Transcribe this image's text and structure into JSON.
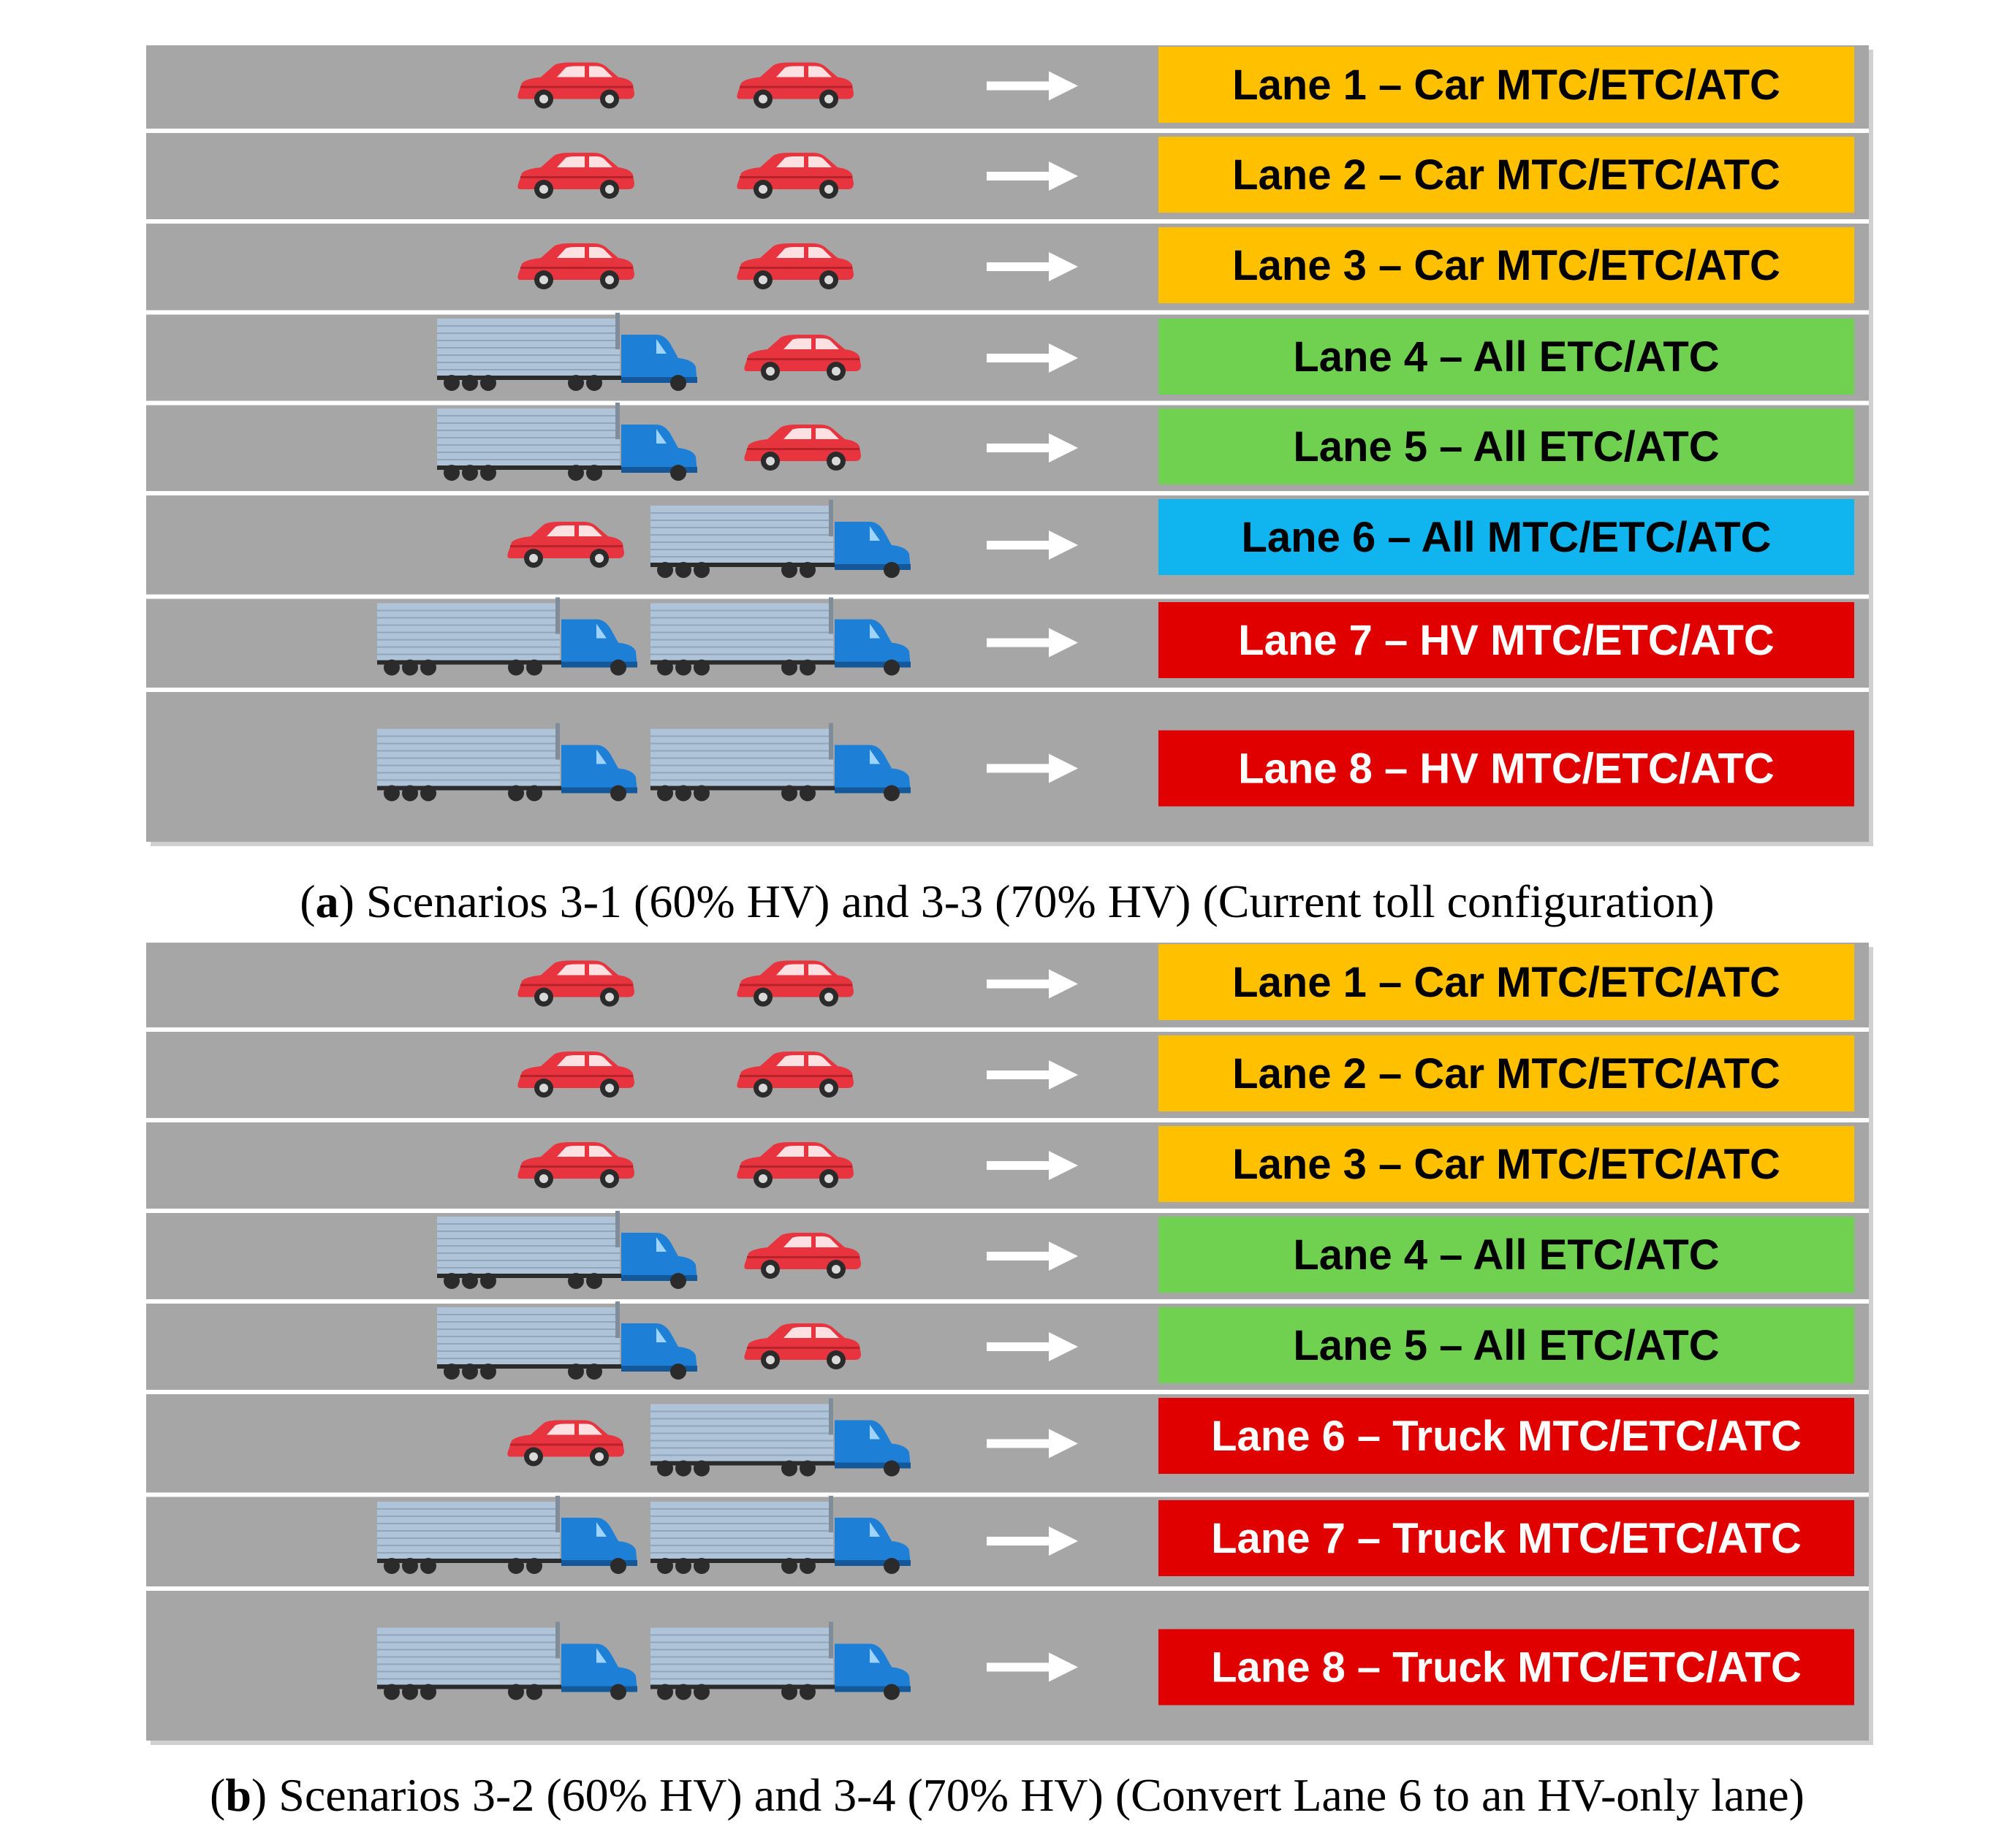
{
  "panels": [
    {
      "id": "a",
      "caption_letter": "a",
      "caption_text": " Scenarios 3-1 (60% HV) and 3-3 (70% HV) (Current toll configuration)",
      "lanes": [
        {
          "label": "Lane 1 – Car MTC/ETC/ATC",
          "type": "car",
          "color": "#FFC000",
          "text_color": "#000000",
          "vehicles": [
            "car",
            "car"
          ]
        },
        {
          "label": "Lane 2 – Car MTC/ETC/ATC",
          "type": "car",
          "color": "#FFC000",
          "text_color": "#000000",
          "vehicles": [
            "car",
            "car"
          ]
        },
        {
          "label": "Lane 3 – Car MTC/ETC/ATC",
          "type": "car",
          "color": "#FFC000",
          "text_color": "#000000",
          "vehicles": [
            "car",
            "car"
          ]
        },
        {
          "label": "Lane 4 – All ETC/ATC",
          "type": "all",
          "color": "#70D050",
          "text_color": "#000000",
          "vehicles": [
            "truck",
            "car"
          ]
        },
        {
          "label": "Lane 5 – All ETC/ATC",
          "type": "all",
          "color": "#70D050",
          "text_color": "#000000",
          "vehicles": [
            "truck",
            "car"
          ]
        },
        {
          "label": "Lane 6 – All MTC/ETC/ATC",
          "type": "all",
          "color": "#10B4EE",
          "text_color": "#000000",
          "vehicles": [
            "car",
            "truck"
          ]
        },
        {
          "label": "Lane 7 – HV MTC/ETC/ATC",
          "type": "hv",
          "color": "#E00000",
          "text_color": "#FFFFFF",
          "vehicles": [
            "truck",
            "truck"
          ]
        },
        {
          "label": "Lane 8 – HV MTC/ETC/ATC",
          "type": "hv",
          "color": "#E00000",
          "text_color": "#FFFFFF",
          "vehicles": [
            "truck",
            "truck"
          ]
        }
      ]
    },
    {
      "id": "b",
      "caption_letter": "b",
      "caption_text": " Scenarios 3-2 (60% HV) and 3-4 (70% HV) (Convert Lane 6 to an HV-only lane)",
      "lanes": [
        {
          "label": "Lane 1 – Car MTC/ETC/ATC",
          "type": "car",
          "color": "#FFC000",
          "text_color": "#000000",
          "vehicles": [
            "car",
            "car"
          ]
        },
        {
          "label": "Lane 2 – Car MTC/ETC/ATC",
          "type": "car",
          "color": "#FFC000",
          "text_color": "#000000",
          "vehicles": [
            "car",
            "car"
          ]
        },
        {
          "label": "Lane 3 – Car MTC/ETC/ATC",
          "type": "car",
          "color": "#FFC000",
          "text_color": "#000000",
          "vehicles": [
            "car",
            "car"
          ]
        },
        {
          "label": "Lane 4 – All ETC/ATC",
          "type": "all",
          "color": "#70D050",
          "text_color": "#000000",
          "vehicles": [
            "truck",
            "car"
          ]
        },
        {
          "label": "Lane 5 – All ETC/ATC",
          "type": "all",
          "color": "#70D050",
          "text_color": "#000000",
          "vehicles": [
            "truck",
            "car"
          ]
        },
        {
          "label": "Lane 6 – Truck MTC/ETC/ATC",
          "type": "hv",
          "color": "#E00000",
          "text_color": "#FFFFFF",
          "vehicles": [
            "car",
            "truck"
          ]
        },
        {
          "label": "Lane 7 – Truck MTC/ETC/ATC",
          "type": "hv",
          "color": "#E00000",
          "text_color": "#FFFFFF",
          "vehicles": [
            "truck",
            "truck"
          ]
        },
        {
          "label": "Lane 8 – Truck MTC/ETC/ATC",
          "type": "hv",
          "color": "#E00000",
          "text_color": "#FFFFFF",
          "vehicles": [
            "truck",
            "truck"
          ]
        }
      ]
    }
  ],
  "road_color": "#A6A6A6",
  "divider_color": "#FFFFFF",
  "car_color": "#E8343F",
  "truck_trailer_color": "#AFC4D8",
  "truck_cab_color": "#1E7FD6",
  "arrow_color": "#FFFFFF",
  "icons": [
    "car-icon",
    "truck-icon",
    "right-arrow-icon"
  ]
}
